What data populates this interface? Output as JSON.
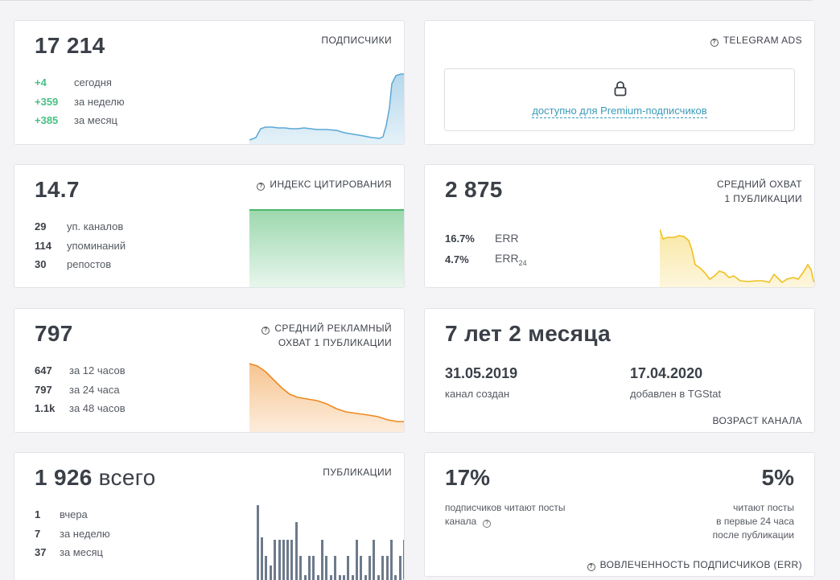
{
  "subscribers": {
    "value": "17 214",
    "caption": "ПОДПИСЧИКИ",
    "rows": [
      {
        "v": "+4",
        "t": "сегодня"
      },
      {
        "v": "+359",
        "t": "за неделю"
      },
      {
        "v": "+385",
        "t": "за месяц"
      }
    ]
  },
  "ads": {
    "caption": "TELEGRAM ADS",
    "locked_text": "доступно для Premium-подписчиков"
  },
  "citation": {
    "value": "14.7",
    "caption": "ИНДЕКС ЦИТИРОВАНИЯ",
    "rows": [
      {
        "v": "29",
        "t": "уп. каналов"
      },
      {
        "v": "114",
        "t": "упоминаний"
      },
      {
        "v": "30",
        "t": "репостов"
      }
    ]
  },
  "reach": {
    "value": "2 875",
    "caption_line1": "СРЕДНИЙ ОХВАТ",
    "caption_line2": "1 ПУБЛИКАЦИИ",
    "rows": [
      {
        "v": "16.7%",
        "t": "ERR",
        "sub": ""
      },
      {
        "v": "4.7%",
        "t": "ERR",
        "sub": "24"
      }
    ]
  },
  "adreach": {
    "value": "797",
    "caption_line1": "СРЕДНИЙ РЕКЛАМНЫЙ",
    "caption_line2": "ОХВАТ 1 ПУБЛИКАЦИИ",
    "rows": [
      {
        "v": "647",
        "t": "за 12 часов"
      },
      {
        "v": "797",
        "t": "за 24 часа"
      },
      {
        "v": "1.1k",
        "t": "за 48 часов"
      }
    ]
  },
  "age": {
    "value": "7 лет 2 месяца",
    "created_date": "31.05.2019",
    "created_label": "канал создан",
    "added_date": "17.04.2020",
    "added_label": "добавлен в TGStat",
    "caption": "ВОЗРАСТ КАНАЛА"
  },
  "posts": {
    "value": "1 926",
    "value_suffix": "всего",
    "caption": "ПУБЛИКАЦИИ",
    "rows": [
      {
        "v": "1",
        "t": "вчера"
      },
      {
        "v": "7",
        "t": "за неделю"
      },
      {
        "v": "37",
        "t": "за месяц"
      }
    ]
  },
  "engagement": {
    "left_value": "17%",
    "left_text_line1": "подписчиков читают посты",
    "left_text_line2": "канала",
    "right_value": "5%",
    "right_text_line1": "читают посты",
    "right_text_line2": "в первые 24 часа",
    "right_text_line3": "после публикации",
    "caption": "ВОВЛЕЧЕННОСТЬ ПОДПИСЧИКОВ (ERR)"
  },
  "colors": {
    "positive": "#47bf83",
    "subs_line": "#5aa8d6",
    "citation_line": "#4cb86b",
    "reach_line": "#f0c020",
    "adreach_line": "#ee8a22",
    "posts_bar": "#6d7a8c",
    "link": "#3a9ab8"
  },
  "icons": {
    "question": "question-circle-icon",
    "lock": "lock-icon"
  }
}
